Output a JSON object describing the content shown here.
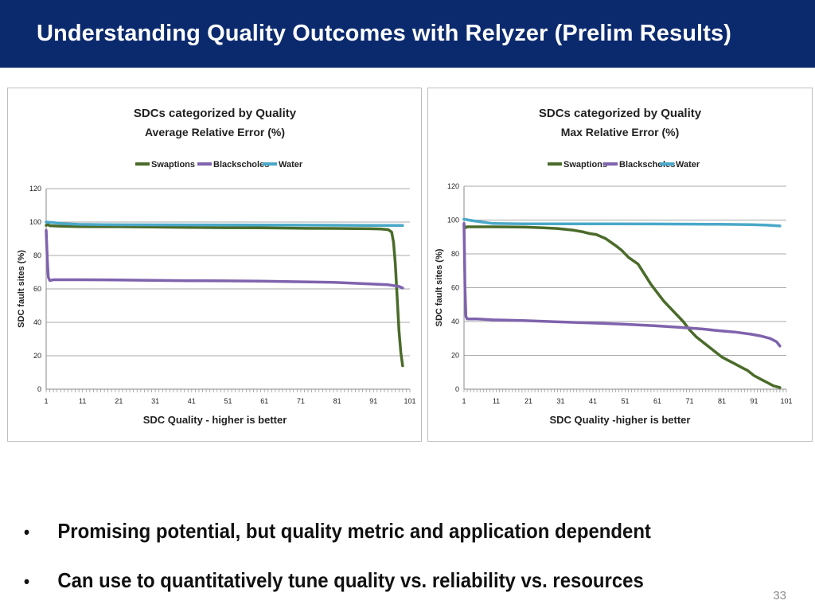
{
  "slide": {
    "title": "Understanding Quality Outcomes with Relyzer (Prelim Results)",
    "bullets": [
      "Promising potential, but quality metric and application dependent",
      "Can use to quantitatively tune quality vs. reliability vs. resources"
    ],
    "page_number": "33"
  },
  "chart_data": [
    {
      "type": "line",
      "title": "SDCs categorized by Quality",
      "subtitle": "Average Relative Error (%)",
      "xlabel": "SDC Quality - higher is better",
      "ylabel": "SDC fault sites (%)",
      "xlim": [
        1,
        101
      ],
      "ylim": [
        0,
        120
      ],
      "yticks": [
        "0",
        "20",
        "40",
        "60",
        "80",
        "100",
        "120"
      ],
      "xticks": [
        "1",
        "11",
        "21",
        "31",
        "41",
        "51",
        "61",
        "71",
        "81",
        "91",
        "101"
      ],
      "grid": true,
      "legend": "top",
      "series": [
        {
          "name": "Swaptions",
          "color": "#4a6b2a",
          "x": [
            1,
            1.5,
            2,
            5,
            10,
            20,
            30,
            40,
            50,
            60,
            70,
            80,
            90,
            93,
            95,
            96,
            96.5,
            97,
            97.5,
            98,
            98.5,
            99
          ],
          "values": [
            98,
            98.5,
            97.8,
            97.5,
            97.3,
            97.2,
            97,
            96.8,
            96.6,
            96.5,
            96.3,
            96.2,
            96,
            95.8,
            95.5,
            94,
            88,
            75,
            55,
            35,
            22,
            14
          ]
        },
        {
          "name": "Blackscholes",
          "color": "#7f63ad",
          "x": [
            1,
            1.3,
            1.6,
            2,
            3,
            10,
            20,
            30,
            40,
            50,
            60,
            70,
            80,
            85,
            90,
            95,
            98,
            99
          ],
          "values": [
            95,
            78,
            67,
            65,
            65.5,
            65.5,
            65.4,
            65.1,
            64.9,
            64.8,
            64.6,
            64.3,
            63.9,
            63.5,
            63,
            62.5,
            61.5,
            60.5
          ]
        },
        {
          "name": "Water",
          "color": "#4aa8c8",
          "x": [
            1,
            3,
            6,
            10,
            20,
            40,
            60,
            80,
            90,
            99
          ],
          "values": [
            100,
            99.6,
            99,
            98.6,
            98.4,
            98.3,
            98.2,
            98.1,
            98,
            98
          ]
        }
      ]
    },
    {
      "type": "line",
      "title": "SDCs categorized by Quality",
      "subtitle": "Max Relative Error (%)",
      "xlabel": "SDC Quality -higher is better",
      "ylabel": "SDC fault sites (%)",
      "xlim": [
        1,
        101
      ],
      "ylim": [
        0,
        120
      ],
      "yticks": [
        "0",
        "20",
        "40",
        "60",
        "80",
        "100",
        "120"
      ],
      "xticks": [
        "1",
        "11",
        "21",
        "31",
        "41",
        "51",
        "61",
        "71",
        "81",
        "91",
        "101"
      ],
      "grid": true,
      "legend": "top",
      "series": [
        {
          "name": "Swaptions",
          "color": "#4a6b2a",
          "x": [
            1,
            1.5,
            2,
            5,
            10,
            20,
            25,
            30,
            35,
            38,
            40,
            42,
            45,
            48,
            50,
            52,
            55,
            57,
            59,
            61,
            63,
            65,
            67,
            69,
            71,
            73,
            75,
            77,
            79,
            81,
            83,
            85,
            87,
            89,
            91,
            93,
            95,
            97,
            99
          ],
          "values": [
            97,
            95.5,
            96,
            96,
            96,
            95.8,
            95.5,
            95,
            94,
            93,
            92,
            91.5,
            89,
            85,
            82,
            78,
            74,
            68,
            62,
            57,
            52,
            48,
            44,
            40,
            35,
            31,
            28,
            25,
            22,
            19,
            17,
            15,
            13,
            11,
            8,
            6,
            4,
            2,
            1
          ]
        },
        {
          "name": "Blackscholes",
          "color": "#7f63ad",
          "x": [
            1,
            1.3,
            1.6,
            2,
            5,
            10,
            20,
            30,
            40,
            50,
            60,
            70,
            75,
            80,
            85,
            90,
            93,
            96,
            98,
            99
          ],
          "values": [
            98,
            60,
            43,
            41.5,
            41.5,
            41,
            40.5,
            39.8,
            39.2,
            38.5,
            37.5,
            36.3,
            35.6,
            34.6,
            33.8,
            32.5,
            31.5,
            30,
            28,
            25.5
          ]
        },
        {
          "name": "Water",
          "color": "#4aa8c8",
          "x": [
            1,
            3,
            6,
            10,
            20,
            40,
            60,
            80,
            90,
            95,
            99
          ],
          "values": [
            100.5,
            99.8,
            99,
            98,
            97.8,
            97.8,
            97.7,
            97.5,
            97.3,
            97,
            96.5
          ]
        }
      ]
    }
  ]
}
